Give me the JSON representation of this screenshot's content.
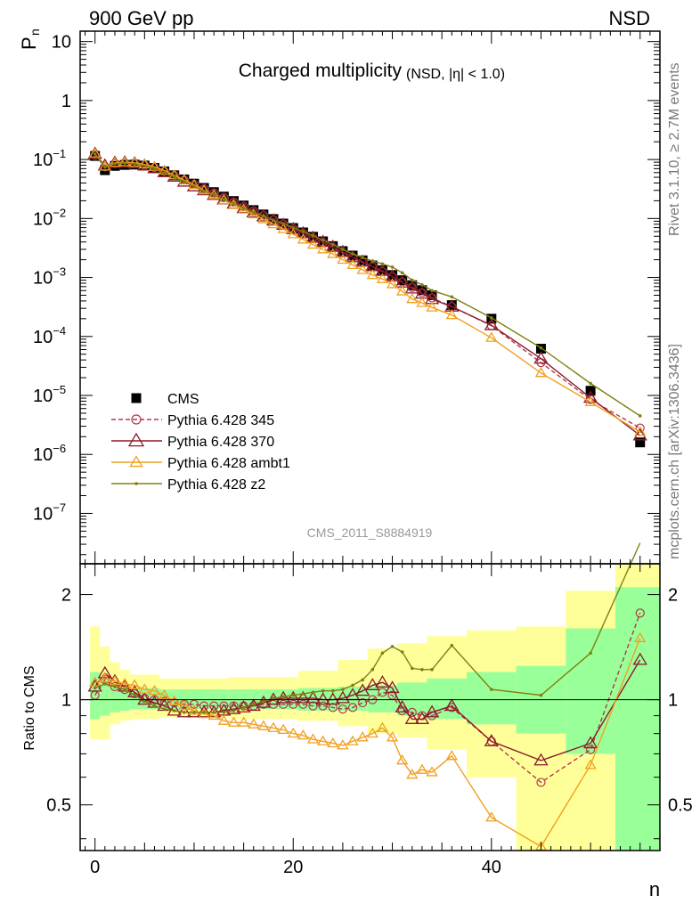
{
  "header": {
    "left": "900 GeV pp",
    "right": "NSD"
  },
  "side_text": {
    "upper": "Rivet 3.1.10, ≥ 2.7M events",
    "lower": "mcplots.cern.ch [arXiv:1306.3436]"
  },
  "chart_data": [
    {
      "type": "line",
      "panel": "main",
      "title": "Charged multiplicity",
      "subtitle": "(NSD, |η| < 1.0)",
      "ylabel_main": "P",
      "ylabel_sub": "n",
      "yscale": "log",
      "ylim": [
        1.4e-08,
        15
      ],
      "xlim": [
        -1.5,
        57
      ],
      "y_tick_labels": [
        {
          "v": 10,
          "label": "10"
        },
        {
          "v": 1,
          "label": "1"
        },
        {
          "v": 0.1,
          "m": "10",
          "e": "−1"
        },
        {
          "v": 0.01,
          "m": "10",
          "e": "−2"
        },
        {
          "v": 0.001,
          "m": "10",
          "e": "−3"
        },
        {
          "v": 0.0001,
          "m": "10",
          "e": "−4"
        },
        {
          "v": 1e-05,
          "m": "10",
          "e": "−5"
        },
        {
          "v": 1e-06,
          "m": "10",
          "e": "−6"
        },
        {
          "v": 1e-07,
          "m": "10",
          "e": "−7"
        }
      ],
      "watermark": "CMS_2011_S8884919",
      "legend_position": "lower-left",
      "x": [
        0,
        1,
        2,
        3,
        4,
        5,
        6,
        7,
        8,
        9,
        10,
        11,
        12,
        13,
        14,
        15,
        16,
        17,
        18,
        19,
        20,
        21,
        22,
        23,
        24,
        25,
        26,
        27,
        28,
        29,
        30,
        31,
        32,
        33,
        34,
        36,
        40,
        45,
        50,
        55
      ],
      "series": [
        {
          "name": "CMS",
          "style": "data",
          "color": "#000000",
          "values": [
            0.115,
            0.066,
            0.078,
            0.081,
            0.082,
            0.079,
            0.072,
            0.063,
            0.054,
            0.046,
            0.039,
            0.033,
            0.028,
            0.0235,
            0.0198,
            0.0166,
            0.0139,
            0.0117,
            0.0098,
            0.0082,
            0.0069,
            0.0058,
            0.0049,
            0.0041,
            0.0034,
            0.0028,
            0.00235,
            0.00195,
            0.0016,
            0.00133,
            0.0011,
            0.0009,
            0.00074,
            0.00061,
            0.0005,
            0.00034,
            0.0002,
            6.2e-05,
            1.2e-05,
            1.6e-06
          ]
        },
        {
          "name": "Pythia 6.428 345",
          "style": "circle-dashed",
          "color": "#b03a48",
          "values": [
            0.118,
            0.075,
            0.085,
            0.087,
            0.085,
            0.08,
            0.073,
            0.063,
            0.054,
            0.045,
            0.038,
            0.032,
            0.027,
            0.0226,
            0.019,
            0.016,
            0.0134,
            0.0113,
            0.0095,
            0.008,
            0.0067,
            0.0056,
            0.0047,
            0.0039,
            0.0032,
            0.0026,
            0.0022,
            0.0018,
            0.00152,
            0.00126,
            0.00103,
            0.00084,
            0.00068,
            0.00055,
            0.00045,
            0.00032,
            0.000152,
            3.6e-05,
            8.5e-06,
            2.8e-06
          ]
        },
        {
          "name": "Pythia 6.428 370",
          "style": "triangle",
          "color": "#8b1a2b",
          "values": [
            0.125,
            0.079,
            0.088,
            0.089,
            0.086,
            0.079,
            0.071,
            0.061,
            0.051,
            0.042,
            0.035,
            0.03,
            0.025,
            0.021,
            0.0178,
            0.015,
            0.0127,
            0.0108,
            0.0092,
            0.0078,
            0.0066,
            0.0056,
            0.0047,
            0.004,
            0.0033,
            0.0027,
            0.0022,
            0.00185,
            0.00155,
            0.00129,
            0.00104,
            0.00082,
            0.00065,
            0.00053,
            0.00043,
            0.00032,
            0.000155,
            4.2e-05,
            9.1e-06,
            2.1e-06
          ]
        },
        {
          "name": "Pythia 6.428 ambt1",
          "style": "triangle-small",
          "color": "#f0a020",
          "values": [
            0.126,
            0.076,
            0.088,
            0.09,
            0.088,
            0.083,
            0.075,
            0.065,
            0.054,
            0.045,
            0.037,
            0.03,
            0.025,
            0.0205,
            0.017,
            0.0142,
            0.0118,
            0.0097,
            0.008,
            0.0066,
            0.0054,
            0.0044,
            0.0036,
            0.003,
            0.0025,
            0.002,
            0.00163,
            0.00134,
            0.0011,
            0.00094,
            0.00077,
            0.00058,
            0.00043,
            0.00037,
            0.00031,
            0.00023,
            9.5e-05,
            2.4e-05,
            7.7e-06,
            2.4e-06
          ]
        },
        {
          "name": "Pythia 6.428 z2",
          "style": "dot-line",
          "color": "#808010",
          "values": [
            0.124,
            0.074,
            0.085,
            0.087,
            0.084,
            0.078,
            0.069,
            0.059,
            0.05,
            0.042,
            0.035,
            0.029,
            0.025,
            0.021,
            0.0178,
            0.015,
            0.0127,
            0.0109,
            0.0094,
            0.0082,
            0.007,
            0.006,
            0.0051,
            0.0043,
            0.0036,
            0.003,
            0.0025,
            0.0022,
            0.0019,
            0.0017,
            0.0015,
            0.0012,
            0.0009,
            0.00075,
            0.0006,
            0.00047,
            0.000207,
            6.4e-05,
            1.6e-05,
            4.5e-06
          ]
        }
      ]
    },
    {
      "type": "line",
      "panel": "ratio",
      "ylabel": "Ratio to CMS",
      "xlabel": "n",
      "yscale": "log",
      "ylim": [
        0.37,
        2.45
      ],
      "xlim": [
        -1.5,
        57
      ],
      "x_ticks": [
        0,
        20,
        40
      ],
      "y_ticks": [
        0.5,
        1,
        2
      ],
      "x": [
        0,
        1,
        2,
        3,
        4,
        5,
        6,
        7,
        8,
        9,
        10,
        11,
        12,
        13,
        14,
        15,
        16,
        17,
        18,
        19,
        20,
        21,
        22,
        23,
        24,
        25,
        26,
        27,
        28,
        29,
        30,
        31,
        32,
        33,
        34,
        36,
        40,
        45,
        50,
        55
      ],
      "bands": {
        "inner_color": "#99ff99",
        "outer_color": "#ffff99",
        "bins": [
          {
            "x0": -0.5,
            "x1": 0.5,
            "inner": [
              0.88,
              1.2
            ],
            "outer": [
              0.77,
              1.62
            ]
          },
          {
            "x0": 0.5,
            "x1": 1.5,
            "inner": [
              0.9,
              1.15
            ],
            "outer": [
              0.77,
              1.42
            ]
          },
          {
            "x0": 1.5,
            "x1": 2.5,
            "inner": [
              0.92,
              1.12
            ],
            "outer": [
              0.85,
              1.28
            ]
          },
          {
            "x0": 2.5,
            "x1": 3.5,
            "inner": [
              0.93,
              1.1
            ],
            "outer": [
              0.87,
              1.22
            ]
          },
          {
            "x0": 3.5,
            "x1": 6.5,
            "inner": [
              0.94,
              1.08
            ],
            "outer": [
              0.88,
              1.18
            ]
          },
          {
            "x0": 6.5,
            "x1": 13.5,
            "inner": [
              0.94,
              1.07
            ],
            "outer": [
              0.89,
              1.15
            ]
          },
          {
            "x0": 13.5,
            "x1": 20.5,
            "inner": [
              0.94,
              1.07
            ],
            "outer": [
              0.88,
              1.16
            ]
          },
          {
            "x0": 20.5,
            "x1": 24.5,
            "inner": [
              0.93,
              1.08
            ],
            "outer": [
              0.87,
              1.21
            ]
          },
          {
            "x0": 24.5,
            "x1": 27.5,
            "inner": [
              0.93,
              1.09
            ],
            "outer": [
              0.84,
              1.3
            ]
          },
          {
            "x0": 27.5,
            "x1": 30.5,
            "inner": [
              0.92,
              1.1
            ],
            "outer": [
              0.8,
              1.4
            ]
          },
          {
            "x0": 30.5,
            "x1": 33.5,
            "inner": [
              0.9,
              1.12
            ],
            "outer": [
              0.78,
              1.45
            ]
          },
          {
            "x0": 33.5,
            "x1": 37.5,
            "inner": [
              0.88,
              1.15
            ],
            "outer": [
              0.72,
              1.52
            ]
          },
          {
            "x0": 37.5,
            "x1": 42.5,
            "inner": [
              0.85,
              1.2
            ],
            "outer": [
              0.6,
              1.58
            ]
          },
          {
            "x0": 42.5,
            "x1": 47.5,
            "inner": [
              0.8,
              1.25
            ],
            "outer": [
              0.37,
              1.62
            ]
          },
          {
            "x0": 47.5,
            "x1": 52.5,
            "inner": [
              0.7,
              1.6
            ],
            "outer": [
              0.37,
              2.05
            ]
          },
          {
            "x0": 52.5,
            "x1": 57,
            "inner": [
              0.37,
              2.1
            ],
            "outer": [
              0.37,
              2.45
            ]
          }
        ]
      },
      "series": [
        {
          "name": "Pythia 6.428 345",
          "style": "circle-dashed",
          "color": "#b03a48",
          "values": [
            1.03,
            1.14,
            1.09,
            1.07,
            1.04,
            1.01,
            1.0,
            0.99,
            0.98,
            0.97,
            0.97,
            0.96,
            0.96,
            0.96,
            0.96,
            0.96,
            0.96,
            0.97,
            0.97,
            0.97,
            0.97,
            0.97,
            0.96,
            0.96,
            0.95,
            0.94,
            0.95,
            0.98,
            1.0,
            1.05,
            1.03,
            0.93,
            0.92,
            0.9,
            0.9,
            0.95,
            0.76,
            0.58,
            0.72,
            1.77
          ]
        },
        {
          "name": "Pythia 6.428 370",
          "style": "triangle",
          "color": "#8b1a2b",
          "values": [
            1.09,
            1.19,
            1.13,
            1.09,
            1.05,
            1.0,
            0.98,
            0.96,
            0.93,
            0.92,
            0.92,
            0.92,
            0.92,
            0.93,
            0.94,
            0.95,
            0.96,
            0.98,
            1.0,
            1.01,
            1.01,
            1.01,
            1.01,
            1.0,
            1.0,
            1.01,
            1.03,
            1.06,
            1.1,
            1.12,
            1.08,
            0.95,
            0.88,
            0.88,
            0.92,
            0.96,
            0.76,
            0.67,
            0.75,
            1.3
          ]
        },
        {
          "name": "Pythia 6.428 ambt1",
          "style": "triangle-small",
          "color": "#f0a020",
          "values": [
            1.12,
            1.15,
            1.13,
            1.11,
            1.1,
            1.07,
            1.06,
            1.03,
            0.99,
            0.96,
            0.93,
            0.91,
            0.9,
            0.87,
            0.86,
            0.86,
            0.85,
            0.84,
            0.83,
            0.82,
            0.8,
            0.79,
            0.77,
            0.76,
            0.75,
            0.74,
            0.76,
            0.78,
            0.8,
            0.83,
            0.78,
            0.67,
            0.61,
            0.63,
            0.62,
            0.69,
            0.46,
            0.38,
            0.65,
            1.5
          ]
        },
        {
          "name": "Pythia 6.428 z2",
          "style": "dot-line",
          "color": "#808010",
          "values": [
            1.08,
            1.11,
            1.09,
            1.07,
            1.03,
            0.99,
            0.96,
            0.94,
            0.93,
            0.92,
            0.92,
            0.92,
            0.92,
            0.92,
            0.93,
            0.95,
            0.97,
            0.99,
            1.01,
            1.02,
            1.03,
            1.04,
            1.05,
            1.06,
            1.06,
            1.07,
            1.1,
            1.14,
            1.22,
            1.36,
            1.42,
            1.37,
            1.23,
            1.22,
            1.22,
            1.43,
            1.07,
            1.03,
            1.36,
            2.81
          ]
        }
      ]
    }
  ]
}
